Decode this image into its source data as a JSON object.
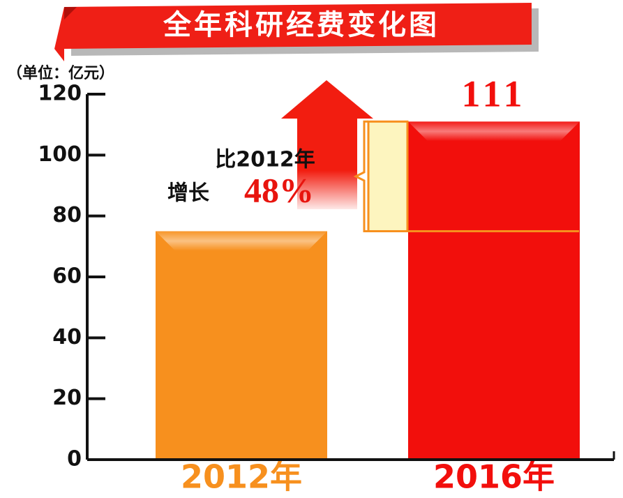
{
  "chart_data": {
    "type": "bar",
    "title": "全年科研经费变化图",
    "unit_label": "（单位：亿元）",
    "categories": [
      "2012年",
      "2016年"
    ],
    "values": [
      75,
      111
    ],
    "value_labels": [
      null,
      "111"
    ],
    "colors": [
      "#f7901e",
      "#f20f0c"
    ],
    "annotations": [
      "比2012年",
      "增长",
      "48%"
    ],
    "ylim": [
      0,
      120
    ],
    "yticks": [
      0,
      20,
      40,
      60,
      80,
      100,
      120
    ]
  }
}
